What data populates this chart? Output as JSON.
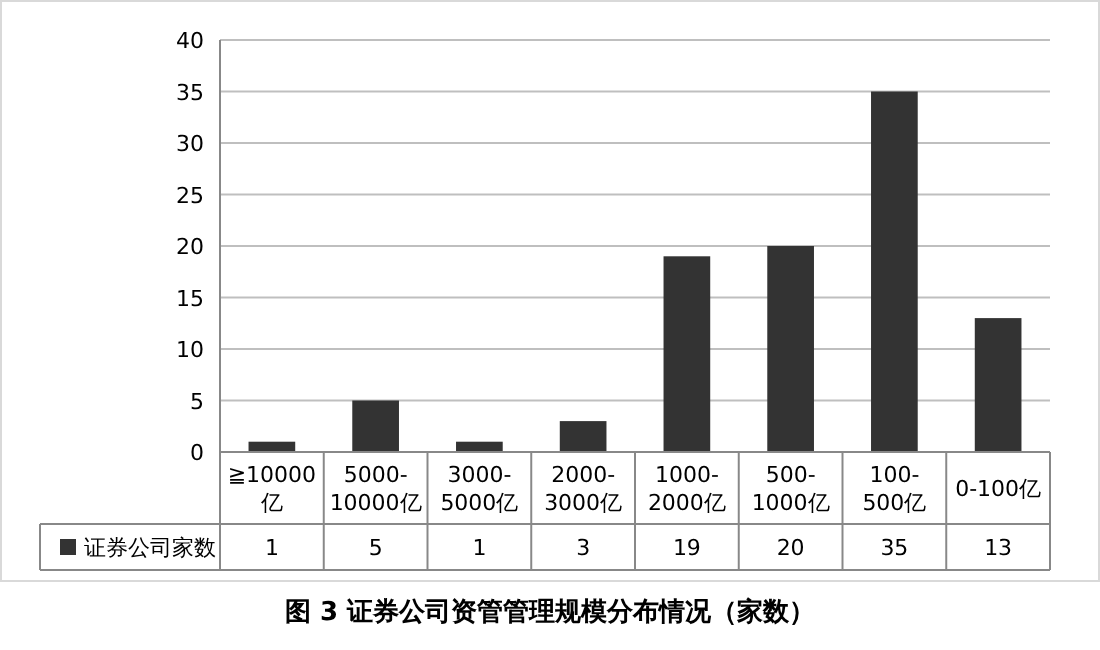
{
  "chart_data": {
    "type": "bar",
    "title": "图 3 证券公司资管管理规模分布情况（家数）",
    "categories": [
      "≧10000亿",
      "5000-10000亿",
      "3000-5000亿",
      "2000-3000亿",
      "1000-2000亿",
      "500-1000亿",
      "100-500亿",
      "0-100亿"
    ],
    "series": [
      {
        "name": "证券公司家数",
        "color": "#333333",
        "values": [
          1,
          5,
          1,
          3,
          19,
          20,
          35,
          13
        ]
      }
    ],
    "ylim": [
      0,
      40
    ],
    "yticks": [
      0,
      5,
      10,
      15,
      20,
      25,
      30,
      35,
      40
    ],
    "grid": "y",
    "legend": "bottom left",
    "data_labels": true
  }
}
